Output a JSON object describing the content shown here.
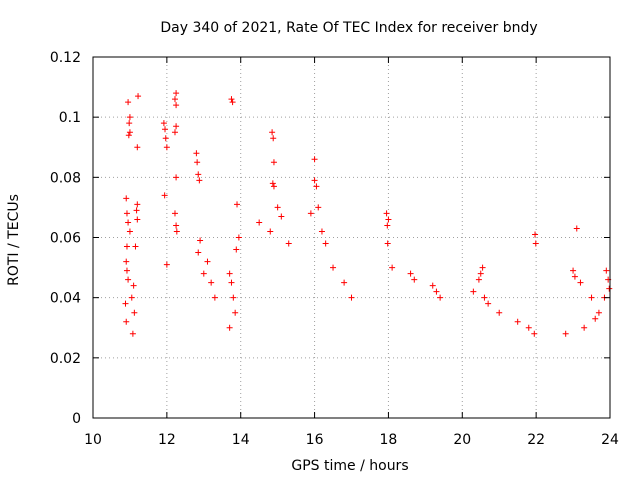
{
  "chart_data": {
    "type": "scatter",
    "title": "Day 340 of 2021, Rate Of TEC Index for receiver bndy",
    "xlabel": "GPS time / hours",
    "ylabel": "ROTI / TECUs",
    "xlim": [
      10,
      24
    ],
    "ylim": [
      0,
      0.12
    ],
    "x_ticks": [
      "10",
      "12",
      "14",
      "16",
      "18",
      "20",
      "22",
      "24"
    ],
    "y_ticks": [
      "0",
      "0.02",
      "0.04",
      "0.06",
      "0.08",
      "0.1",
      "0.12"
    ],
    "grid": true,
    "marker": "+",
    "color": "#ff0000",
    "series": [
      {
        "name": "ROTI",
        "points": [
          [
            10.95,
            0.105
          ],
          [
            11.0,
            0.1
          ],
          [
            10.98,
            0.098
          ],
          [
            11.0,
            0.095
          ],
          [
            10.97,
            0.094
          ],
          [
            11.22,
            0.107
          ],
          [
            11.2,
            0.09
          ],
          [
            11.2,
            0.071
          ],
          [
            11.18,
            0.069
          ],
          [
            11.2,
            0.066
          ],
          [
            10.9,
            0.073
          ],
          [
            10.92,
            0.068
          ],
          [
            10.95,
            0.065
          ],
          [
            11.0,
            0.062
          ],
          [
            11.15,
            0.057
          ],
          [
            10.92,
            0.057
          ],
          [
            10.9,
            0.052
          ],
          [
            10.92,
            0.049
          ],
          [
            10.95,
            0.046
          ],
          [
            11.1,
            0.044
          ],
          [
            11.05,
            0.04
          ],
          [
            10.88,
            0.038
          ],
          [
            11.12,
            0.035
          ],
          [
            10.9,
            0.032
          ],
          [
            11.08,
            0.028
          ],
          [
            11.92,
            0.098
          ],
          [
            11.95,
            0.096
          ],
          [
            11.97,
            0.093
          ],
          [
            12.0,
            0.09
          ],
          [
            11.94,
            0.074
          ],
          [
            12.25,
            0.108
          ],
          [
            12.22,
            0.106
          ],
          [
            12.25,
            0.104
          ],
          [
            12.25,
            0.097
          ],
          [
            12.22,
            0.095
          ],
          [
            12.25,
            0.08
          ],
          [
            12.22,
            0.068
          ],
          [
            12.25,
            0.064
          ],
          [
            12.27,
            0.062
          ],
          [
            12.0,
            0.051
          ],
          [
            12.8,
            0.088
          ],
          [
            12.82,
            0.085
          ],
          [
            12.85,
            0.081
          ],
          [
            12.88,
            0.079
          ],
          [
            12.9,
            0.059
          ],
          [
            12.85,
            0.055
          ],
          [
            13.1,
            0.052
          ],
          [
            13.0,
            0.048
          ],
          [
            13.2,
            0.045
          ],
          [
            13.3,
            0.04
          ],
          [
            13.75,
            0.106
          ],
          [
            13.78,
            0.105
          ],
          [
            13.9,
            0.071
          ],
          [
            13.95,
            0.06
          ],
          [
            13.88,
            0.056
          ],
          [
            13.7,
            0.048
          ],
          [
            13.75,
            0.045
          ],
          [
            13.8,
            0.04
          ],
          [
            13.85,
            0.035
          ],
          [
            13.7,
            0.03
          ],
          [
            14.85,
            0.095
          ],
          [
            14.88,
            0.093
          ],
          [
            14.9,
            0.085
          ],
          [
            14.87,
            0.078
          ],
          [
            14.9,
            0.077
          ],
          [
            15.0,
            0.07
          ],
          [
            15.1,
            0.067
          ],
          [
            14.5,
            0.065
          ],
          [
            14.8,
            0.062
          ],
          [
            15.3,
            0.058
          ],
          [
            16.0,
            0.086
          ],
          [
            16.0,
            0.079
          ],
          [
            16.05,
            0.077
          ],
          [
            16.1,
            0.07
          ],
          [
            15.9,
            0.068
          ],
          [
            16.2,
            0.062
          ],
          [
            16.3,
            0.058
          ],
          [
            16.5,
            0.05
          ],
          [
            16.8,
            0.045
          ],
          [
            17.0,
            0.04
          ],
          [
            17.95,
            0.068
          ],
          [
            18.0,
            0.066
          ],
          [
            17.97,
            0.064
          ],
          [
            17.98,
            0.058
          ],
          [
            18.1,
            0.05
          ],
          [
            18.6,
            0.048
          ],
          [
            18.7,
            0.046
          ],
          [
            19.2,
            0.044
          ],
          [
            19.3,
            0.042
          ],
          [
            19.4,
            0.04
          ],
          [
            20.55,
            0.05
          ],
          [
            20.5,
            0.048
          ],
          [
            20.45,
            0.046
          ],
          [
            20.3,
            0.042
          ],
          [
            20.6,
            0.04
          ],
          [
            20.7,
            0.038
          ],
          [
            21.0,
            0.035
          ],
          [
            21.5,
            0.032
          ],
          [
            21.8,
            0.03
          ],
          [
            21.95,
            0.028
          ],
          [
            21.97,
            0.061
          ],
          [
            21.99,
            0.058
          ],
          [
            23.1,
            0.063
          ],
          [
            23.0,
            0.049
          ],
          [
            23.05,
            0.047
          ],
          [
            23.2,
            0.045
          ],
          [
            23.5,
            0.04
          ],
          [
            23.7,
            0.035
          ],
          [
            23.9,
            0.049
          ],
          [
            23.95,
            0.046
          ],
          [
            23.98,
            0.043
          ],
          [
            23.85,
            0.04
          ],
          [
            23.6,
            0.033
          ],
          [
            23.3,
            0.03
          ],
          [
            22.8,
            0.028
          ]
        ]
      }
    ]
  }
}
